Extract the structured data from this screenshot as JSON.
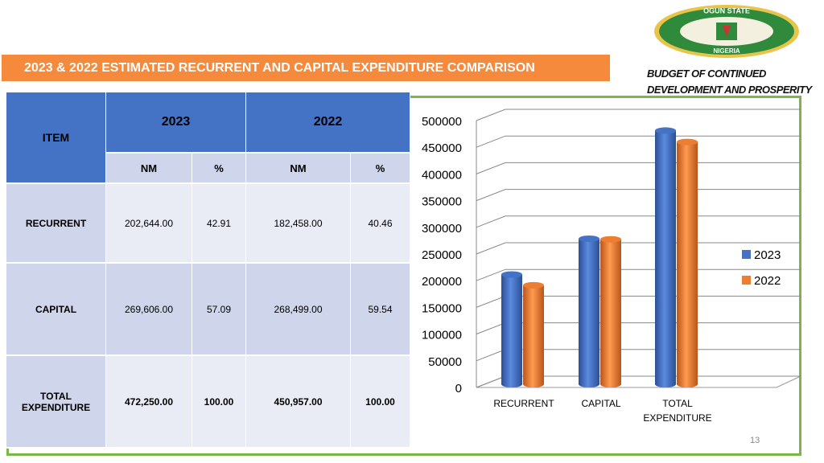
{
  "title": "2023 & 2022 ESTIMATED RECURRENT AND CAPITAL EXPENDITURE COMPARISON",
  "tagline": [
    "BUDGET  OF CONTINUED",
    "DEVELOPMENT AND PROSPERITY"
  ],
  "logo": {
    "top": "OGUN STATE",
    "bottom": "NIGERIA"
  },
  "page_number": "13",
  "table": {
    "header": [
      "ITEM",
      "2023",
      "2022"
    ],
    "subheader": [
      "NM",
      "%",
      "NM",
      "%"
    ],
    "rows": [
      [
        "RECURRENT",
        "202,644.00",
        "42.91",
        "182,458.00",
        "40.46"
      ],
      [
        "CAPITAL",
        "269,606.00",
        "57.09",
        "268,499.00",
        "59.54"
      ],
      [
        "TOTAL EXPENDITURE",
        "472,250.00",
        "100.00",
        "450,957.00",
        "100.00"
      ]
    ]
  },
  "chart_data": {
    "type": "bar",
    "categories": [
      "RECURRENT",
      "CAPITAL",
      "TOTAL EXPENDITURE"
    ],
    "series": [
      {
        "name": "2023",
        "color": "#4472c4",
        "values": [
          202644,
          269606,
          472250
        ]
      },
      {
        "name": "2022",
        "color": "#ed7d31",
        "values": [
          182458,
          268499,
          450957
        ]
      }
    ],
    "ylim": [
      0,
      500000
    ],
    "yticks": [
      0,
      50000,
      100000,
      150000,
      200000,
      250000,
      300000,
      350000,
      400000,
      450000,
      500000
    ],
    "grid": true,
    "legend": "right"
  }
}
